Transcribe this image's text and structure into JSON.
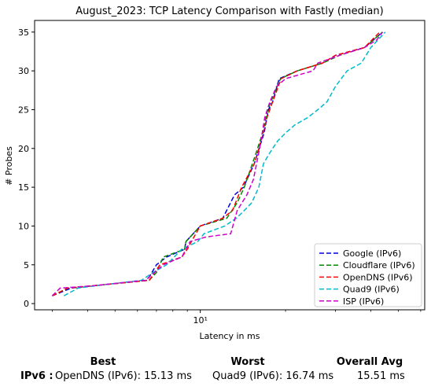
{
  "chart_data": {
    "type": "line",
    "title": "August_2023: TCP Latency Comparison with Fastly (median)",
    "xlabel": "Latency in ms",
    "ylabel": "# Probes",
    "x_scale": "log",
    "xlim": [
      2.6,
      62
    ],
    "ylim": [
      -0.8,
      36.5
    ],
    "x_ticks": [
      {
        "value": 10,
        "label": "10¹"
      }
    ],
    "y_ticks": [
      0,
      5,
      10,
      15,
      20,
      25,
      30,
      35
    ],
    "grid": false,
    "legend_position": "lower-right",
    "series": [
      {
        "name": "Google (IPv6)",
        "color": "#0000dd",
        "dash": "6,3",
        "points": [
          [
            3.0,
            1
          ],
          [
            3.5,
            2
          ],
          [
            4.2,
            2.3
          ],
          [
            6.5,
            3
          ],
          [
            7.0,
            5
          ],
          [
            7.6,
            6
          ],
          [
            8.8,
            7
          ],
          [
            8.9,
            8
          ],
          [
            10.0,
            10
          ],
          [
            12.0,
            11
          ],
          [
            13.2,
            14
          ],
          [
            14.2,
            15
          ],
          [
            15.5,
            18
          ],
          [
            16.8,
            22
          ],
          [
            17.4,
            25
          ],
          [
            18.0,
            26
          ],
          [
            19.0,
            29
          ],
          [
            22.0,
            30
          ],
          [
            27.0,
            31
          ],
          [
            30.0,
            32
          ],
          [
            38.0,
            33
          ],
          [
            44.0,
            35
          ]
        ]
      },
      {
        "name": "Cloudflare (IPv6)",
        "color": "#008800",
        "dash": "6,3",
        "points": [
          [
            3.0,
            1
          ],
          [
            3.4,
            2
          ],
          [
            4.2,
            2.3
          ],
          [
            6.6,
            3
          ],
          [
            7.0,
            4
          ],
          [
            7.4,
            6
          ],
          [
            8.8,
            7
          ],
          [
            8.9,
            8
          ],
          [
            10.0,
            10
          ],
          [
            12.4,
            11
          ],
          [
            13.5,
            13
          ],
          [
            14.3,
            15
          ],
          [
            15.6,
            19
          ],
          [
            16.6,
            22
          ],
          [
            17.3,
            25
          ],
          [
            18.2,
            27
          ],
          [
            19.2,
            29
          ],
          [
            22.0,
            30
          ],
          [
            27.0,
            31
          ],
          [
            31.0,
            32
          ],
          [
            38.0,
            33
          ],
          [
            44.0,
            35
          ]
        ]
      },
      {
        "name": "OpenDNS (IPv6)",
        "color": "#ff0000",
        "dash": "6,3",
        "points": [
          [
            3.0,
            1
          ],
          [
            3.4,
            2
          ],
          [
            4.2,
            2.3
          ],
          [
            6.6,
            3
          ],
          [
            7.2,
            5
          ],
          [
            8.6,
            6
          ],
          [
            9.0,
            7
          ],
          [
            9.3,
            8
          ],
          [
            10.0,
            10
          ],
          [
            12.0,
            11
          ],
          [
            13.0,
            12
          ],
          [
            14.0,
            15
          ],
          [
            15.5,
            18
          ],
          [
            16.7,
            22
          ],
          [
            17.2,
            24
          ],
          [
            18.0,
            26
          ],
          [
            19.3,
            29
          ],
          [
            22.0,
            30
          ],
          [
            27.0,
            31
          ],
          [
            30.0,
            32
          ],
          [
            38.0,
            33
          ],
          [
            43.0,
            35
          ]
        ]
      },
      {
        "name": "Quad9 (IPv6)",
        "color": "#00bbcc",
        "dash": "6,3",
        "points": [
          [
            3.3,
            1
          ],
          [
            3.7,
            2
          ],
          [
            4.5,
            2.4
          ],
          [
            6.2,
            3
          ],
          [
            6.8,
            4
          ],
          [
            7.6,
            5
          ],
          [
            8.6,
            7
          ],
          [
            9.8,
            8
          ],
          [
            10.3,
            9
          ],
          [
            12.2,
            10
          ],
          [
            13.4,
            11
          ],
          [
            14.3,
            12
          ],
          [
            15.2,
            13
          ],
          [
            16.1,
            15
          ],
          [
            16.7,
            18
          ],
          [
            17.3,
            19
          ],
          [
            18.0,
            20
          ],
          [
            18.8,
            21
          ],
          [
            20.0,
            22
          ],
          [
            21.5,
            23
          ],
          [
            24.0,
            24
          ],
          [
            26.0,
            25
          ],
          [
            28.0,
            26
          ],
          [
            30.0,
            28
          ],
          [
            33.0,
            30
          ],
          [
            37.0,
            31
          ],
          [
            40.0,
            33
          ],
          [
            45.0,
            35
          ]
        ]
      },
      {
        "name": "ISP (IPv6)",
        "color": "#cc00cc",
        "dash": "6,3",
        "points": [
          [
            3.0,
            1
          ],
          [
            3.2,
            2
          ],
          [
            4.2,
            2.3
          ],
          [
            6.4,
            3
          ],
          [
            7.4,
            5
          ],
          [
            8.6,
            6
          ],
          [
            8.9,
            7
          ],
          [
            9.2,
            8
          ],
          [
            10.5,
            8.6
          ],
          [
            12.8,
            9
          ],
          [
            13.5,
            12
          ],
          [
            14.6,
            14
          ],
          [
            15.4,
            16
          ],
          [
            16.2,
            20
          ],
          [
            16.9,
            24
          ],
          [
            17.6,
            26
          ],
          [
            18.6,
            28
          ],
          [
            20.0,
            29
          ],
          [
            25.0,
            30
          ],
          [
            26.0,
            31
          ],
          [
            31.0,
            32
          ],
          [
            38.0,
            33
          ],
          [
            42.0,
            34
          ],
          [
            44.0,
            35
          ]
        ]
      }
    ]
  },
  "summary": {
    "headers": {
      "best": "Best",
      "worst": "Worst",
      "overall": "Overall Avg"
    },
    "row_label": "IPv6 :",
    "best": "OpenDNS (IPv6): 15.13 ms",
    "worst": "Quad9 (IPv6): 16.74 ms",
    "overall": "15.51 ms"
  }
}
